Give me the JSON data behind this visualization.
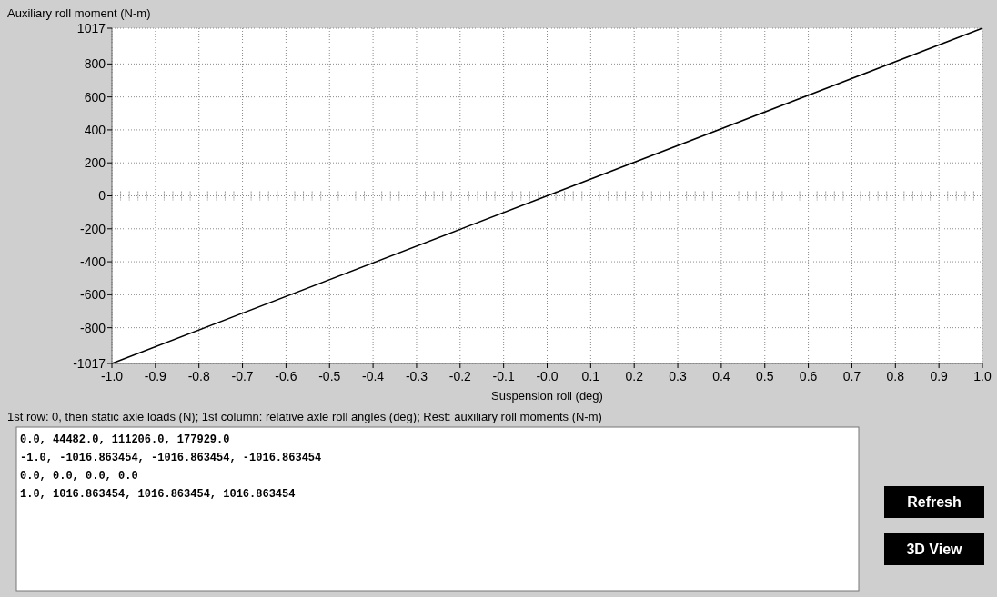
{
  "chart_data": {
    "type": "line",
    "ylabel": "Auxiliary roll moment (N-m)",
    "xlabel": "Suspension roll (deg)",
    "x": [
      -1.0,
      0.0,
      1.0
    ],
    "series": [
      {
        "color": "#000000",
        "values": [
          -1017,
          0,
          1017
        ]
      }
    ],
    "xlim": [
      -1.0,
      1.0
    ],
    "xticks": [
      {
        "value": -1.0,
        "label": "-1.0"
      },
      {
        "value": -0.9,
        "label": "-0.9"
      },
      {
        "value": -0.8,
        "label": "-0.8"
      },
      {
        "value": -0.7,
        "label": "-0.7"
      },
      {
        "value": -0.6,
        "label": "-0.6"
      },
      {
        "value": -0.5,
        "label": "-0.5"
      },
      {
        "value": -0.4,
        "label": "-0.4"
      },
      {
        "value": -0.3,
        "label": "-0.3"
      },
      {
        "value": -0.2,
        "label": "-0.2"
      },
      {
        "value": -0.1,
        "label": "-0.1"
      },
      {
        "value": 0,
        "label": "-0.0"
      },
      {
        "value": 0.1,
        "label": "0.1"
      },
      {
        "value": 0.2,
        "label": "0.2"
      },
      {
        "value": 0.3,
        "label": "0.3"
      },
      {
        "value": 0.4,
        "label": "0.4"
      },
      {
        "value": 0.5,
        "label": "0.5"
      },
      {
        "value": 0.6,
        "label": "0.6"
      },
      {
        "value": 0.7,
        "label": "0.7"
      },
      {
        "value": 0.8,
        "label": "0.8"
      },
      {
        "value": 0.9,
        "label": "0.9"
      },
      {
        "value": 1.0,
        "label": "1.0"
      }
    ],
    "ylim": [
      -1017,
      1017
    ],
    "yticks": [
      -1017,
      -800,
      -600,
      -400,
      -200,
      0,
      200,
      400,
      600,
      800,
      1017
    ],
    "grid": true,
    "annotations": [
      "1st row: 0, then static axle loads (N); 1st column: relative axle roll angles (deg); Rest: auxiliary roll moments (N-m)",
      "0.0, 44482.0, 111206.0, 177929.0",
      "-1.0, -1016.863454, -1016.863454, -1016.863454",
      "0.0, 0.0, 0.0, 0.0",
      "1.0, 1016.863454, 1016.863454, 1016.863454",
      "Refresh",
      "3D View"
    ]
  }
}
